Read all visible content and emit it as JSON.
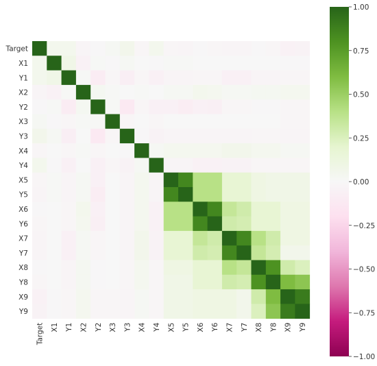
{
  "chart_data": {
    "type": "heatmap",
    "labels": [
      "Target",
      "X1",
      "Y1",
      "X2",
      "Y2",
      "X3",
      "Y3",
      "X4",
      "Y4",
      "X5",
      "Y5",
      "X6",
      "Y6",
      "X7",
      "Y7",
      "X8",
      "Y8",
      "X9",
      "Y9"
    ],
    "matrix": [
      [
        1.0,
        0.05,
        0.05,
        -0.03,
        -0.01,
        0.02,
        0.06,
        -0.02,
        0.05,
        -0.02,
        -0.03,
        -0.01,
        -0.02,
        -0.03,
        -0.03,
        -0.01,
        -0.02,
        -0.05,
        -0.04
      ],
      [
        0.05,
        1.0,
        0.08,
        -0.05,
        0.01,
        -0.01,
        0.02,
        0.0,
        -0.01,
        0.01,
        0.01,
        0.0,
        0.0,
        0.0,
        0.0,
        0.0,
        0.0,
        -0.01,
        -0.01
      ],
      [
        0.05,
        0.08,
        1.0,
        0.01,
        -0.1,
        -0.02,
        -0.08,
        -0.02,
        -0.06,
        -0.03,
        -0.03,
        -0.02,
        -0.02,
        -0.06,
        -0.06,
        -0.03,
        -0.03,
        -0.02,
        -0.02
      ],
      [
        -0.03,
        -0.05,
        0.01,
        1.0,
        0.03,
        0.01,
        0.0,
        0.01,
        0.0,
        0.02,
        0.02,
        0.05,
        0.04,
        0.02,
        0.02,
        0.03,
        0.03,
        0.04,
        0.04
      ],
      [
        -0.01,
        0.01,
        -0.1,
        0.03,
        1.0,
        0.01,
        -0.12,
        -0.02,
        -0.06,
        -0.06,
        -0.09,
        -0.06,
        -0.07,
        -0.02,
        -0.02,
        -0.01,
        -0.01,
        -0.02,
        -0.02
      ],
      [
        0.02,
        -0.01,
        -0.02,
        0.01,
        0.01,
        1.0,
        -0.02,
        0.0,
        -0.02,
        0.0,
        0.0,
        0.0,
        0.0,
        0.0,
        0.0,
        0.0,
        0.0,
        -0.02,
        -0.02
      ],
      [
        0.06,
        0.02,
        -0.08,
        0.0,
        -0.12,
        -0.02,
        1.0,
        -0.01,
        -0.04,
        -0.03,
        -0.03,
        -0.03,
        -0.03,
        -0.03,
        -0.03,
        -0.02,
        -0.02,
        -0.03,
        -0.03
      ],
      [
        -0.02,
        0.0,
        -0.02,
        0.01,
        -0.02,
        0.0,
        -0.01,
        1.0,
        0.02,
        0.04,
        0.04,
        0.04,
        0.04,
        0.06,
        0.06,
        0.04,
        0.04,
        0.02,
        0.02
      ],
      [
        0.05,
        -0.01,
        -0.06,
        0.0,
        -0.06,
        -0.02,
        -0.04,
        0.02,
        1.0,
        -0.03,
        -0.03,
        -0.05,
        -0.05,
        -0.04,
        -0.04,
        -0.02,
        -0.02,
        -0.02,
        -0.02
      ],
      [
        -0.02,
        0.01,
        -0.03,
        0.02,
        -0.06,
        0.0,
        -0.03,
        0.04,
        -0.03,
        1.0,
        0.85,
        0.4,
        0.4,
        0.18,
        0.18,
        0.1,
        0.08,
        0.08,
        0.08
      ],
      [
        -0.03,
        0.01,
        -0.03,
        0.02,
        -0.09,
        0.0,
        -0.03,
        0.04,
        -0.03,
        0.85,
        1.0,
        0.4,
        0.4,
        0.18,
        0.18,
        0.1,
        0.08,
        0.08,
        0.08
      ],
      [
        -0.01,
        0.0,
        -0.02,
        0.05,
        -0.06,
        0.0,
        -0.03,
        0.04,
        -0.05,
        0.4,
        0.4,
        1.0,
        0.85,
        0.35,
        0.3,
        0.18,
        0.18,
        0.1,
        0.1
      ],
      [
        -0.02,
        0.0,
        -0.02,
        0.04,
        -0.07,
        0.0,
        -0.03,
        0.04,
        -0.05,
        0.4,
        0.4,
        0.85,
        1.0,
        0.3,
        0.28,
        0.18,
        0.18,
        0.1,
        0.1
      ],
      [
        -0.03,
        0.0,
        -0.06,
        0.02,
        -0.02,
        0.0,
        -0.03,
        0.06,
        -0.04,
        0.18,
        0.18,
        0.35,
        0.3,
        1.0,
        0.85,
        0.4,
        0.3,
        0.1,
        0.1
      ],
      [
        -0.03,
        0.0,
        -0.06,
        0.02,
        -0.02,
        0.0,
        -0.03,
        0.06,
        -0.04,
        0.18,
        0.18,
        0.3,
        0.28,
        0.85,
        1.0,
        0.35,
        0.28,
        0.06,
        0.06
      ],
      [
        -0.01,
        0.0,
        -0.03,
        0.03,
        -0.01,
        0.0,
        -0.02,
        0.04,
        -0.02,
        0.1,
        0.1,
        0.18,
        0.18,
        0.4,
        0.35,
        1.0,
        0.8,
        0.3,
        0.25
      ],
      [
        -0.02,
        0.0,
        -0.03,
        0.03,
        -0.01,
        0.0,
        -0.02,
        0.04,
        -0.02,
        0.08,
        0.08,
        0.18,
        0.18,
        0.3,
        0.28,
        0.8,
        1.0,
        0.6,
        0.55
      ],
      [
        -0.05,
        -0.01,
        -0.02,
        0.04,
        -0.02,
        -0.02,
        -0.03,
        0.02,
        -0.02,
        0.08,
        0.08,
        0.1,
        0.1,
        0.1,
        0.06,
        0.3,
        0.6,
        1.0,
        0.9
      ],
      [
        -0.04,
        -0.01,
        -0.02,
        0.04,
        -0.02,
        -0.02,
        -0.03,
        0.02,
        -0.02,
        0.08,
        0.08,
        0.1,
        0.1,
        0.1,
        0.06,
        0.25,
        0.55,
        0.9,
        1.0
      ]
    ],
    "colormap": "PiYG",
    "vmin": -1.0,
    "vmax": 1.0,
    "colorbar_ticks": [
      "1.00",
      "0.75",
      "0.50",
      "0.25",
      "0.00",
      "−0.25",
      "−0.50",
      "−0.75",
      "−1.00"
    ],
    "colorbar_values": [
      1.0,
      0.75,
      0.5,
      0.25,
      0.0,
      -0.25,
      -0.5,
      -0.75,
      -1.0
    ],
    "title": "",
    "xlabel": "",
    "ylabel": ""
  }
}
